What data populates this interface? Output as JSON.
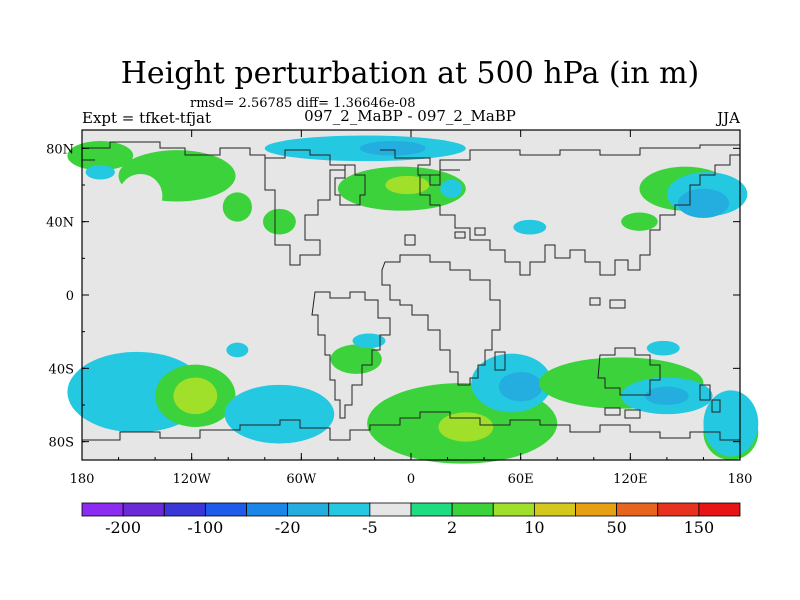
{
  "chart_data": {
    "type": "heatmap",
    "title": "Height perturbation at 500 hPa (in m)",
    "stats_text": "rmsd= 2.56785 diff= 1.36646e-08",
    "left_string": "Expt = tfket-tfjat",
    "center_string": "097_2_MaBP - 097_2_MaBP",
    "right_string": "JJA",
    "x_range": [
      -180,
      180
    ],
    "y_range": [
      -90,
      90
    ],
    "x_ticks": [
      {
        "value": -180,
        "label": "180"
      },
      {
        "value": -120,
        "label": "120W"
      },
      {
        "value": -60,
        "label": "60W"
      },
      {
        "value": 0,
        "label": "0"
      },
      {
        "value": 60,
        "label": "60E"
      },
      {
        "value": 120,
        "label": "120E"
      },
      {
        "value": 180,
        "label": "180"
      }
    ],
    "y_ticks": [
      {
        "value": 80,
        "label": "80N"
      },
      {
        "value": 40,
        "label": "40N"
      },
      {
        "value": 0,
        "label": "0"
      },
      {
        "value": -40,
        "label": "40S"
      },
      {
        "value": -80,
        "label": "80S"
      }
    ],
    "background_color": "#e6e6e6",
    "colorbar": {
      "colors": [
        "#8c2cf0",
        "#6a2ad8",
        "#3a36d8",
        "#1f5ae8",
        "#1a86e8",
        "#24aee0",
        "#24c8e0",
        "#e6e6e6",
        "#1edc82",
        "#3cd23c",
        "#a0e02a",
        "#d2c81e",
        "#e6a014",
        "#e6641e",
        "#e6321e",
        "#e61414"
      ],
      "labels": [
        {
          "value": "-200",
          "boundary": 1
        },
        {
          "value": "-100",
          "boundary": 3
        },
        {
          "value": "-20",
          "boundary": 5
        },
        {
          "value": "-5",
          "boundary": 7
        },
        {
          "value": "2",
          "boundary": 9
        },
        {
          "value": "10",
          "boundary": 11
        },
        {
          "value": "50",
          "boundary": 13
        },
        {
          "value": "150",
          "boundary": 15
        }
      ]
    },
    "regions": [
      {
        "level": 9,
        "lon": -170,
        "lat": 76,
        "rx": 18,
        "ry": 8
      },
      {
        "level": 9,
        "lon": -128,
        "lat": 65,
        "rx": 32,
        "ry": 14
      },
      {
        "level": 9,
        "lon": -95,
        "lat": 48,
        "rx": 8,
        "ry": 8
      },
      {
        "level": 9,
        "lon": -72,
        "lat": 40,
        "rx": 9,
        "ry": 7
      },
      {
        "level": 9,
        "lon": -5,
        "lat": 58,
        "rx": 35,
        "ry": 12
      },
      {
        "level": 10,
        "lon": -2,
        "lat": 60,
        "rx": 12,
        "ry": 5
      },
      {
        "level": 9,
        "lon": 150,
        "lat": 58,
        "rx": 25,
        "ry": 12
      },
      {
        "level": 9,
        "lon": 125,
        "lat": 40,
        "rx": 10,
        "ry": 5
      },
      {
        "level": 7,
        "lon": -148,
        "lat": 54,
        "rx": 12,
        "ry": 12
      },
      {
        "level": 6,
        "lon": -170,
        "lat": 67,
        "rx": 8,
        "ry": 4
      },
      {
        "level": 6,
        "lon": -25,
        "lat": 80,
        "rx": 55,
        "ry": 7
      },
      {
        "level": 5,
        "lon": -10,
        "lat": 80,
        "rx": 18,
        "ry": 4
      },
      {
        "level": 6,
        "lon": 22,
        "lat": 58,
        "rx": 6,
        "ry": 5
      },
      {
        "level": 6,
        "lon": 65,
        "lat": 37,
        "rx": 9,
        "ry": 4
      },
      {
        "level": 6,
        "lon": 162,
        "lat": 55,
        "rx": 22,
        "ry": 12
      },
      {
        "level": 5,
        "lon": 160,
        "lat": 50,
        "rx": 14,
        "ry": 8
      },
      {
        "level": 6,
        "lon": -150,
        "lat": -53,
        "rx": 38,
        "ry": 22
      },
      {
        "level": 9,
        "lon": -118,
        "lat": -55,
        "rx": 22,
        "ry": 17
      },
      {
        "level": 10,
        "lon": -118,
        "lat": -55,
        "rx": 12,
        "ry": 10
      },
      {
        "level": 6,
        "lon": -95,
        "lat": -30,
        "rx": 6,
        "ry": 4
      },
      {
        "level": 6,
        "lon": -72,
        "lat": -65,
        "rx": 30,
        "ry": 16
      },
      {
        "level": 9,
        "lon": -30,
        "lat": -35,
        "rx": 14,
        "ry": 8
      },
      {
        "level": 6,
        "lon": -23,
        "lat": -25,
        "rx": 9,
        "ry": 4
      },
      {
        "level": 9,
        "lon": 28,
        "lat": -70,
        "rx": 52,
        "ry": 22
      },
      {
        "level": 10,
        "lon": 30,
        "lat": -72,
        "rx": 15,
        "ry": 8
      },
      {
        "level": 6,
        "lon": 55,
        "lat": -48,
        "rx": 22,
        "ry": 16
      },
      {
        "level": 5,
        "lon": 60,
        "lat": -50,
        "rx": 12,
        "ry": 8
      },
      {
        "level": 9,
        "lon": 115,
        "lat": -48,
        "rx": 45,
        "ry": 14
      },
      {
        "level": 6,
        "lon": 140,
        "lat": -55,
        "rx": 25,
        "ry": 10
      },
      {
        "level": 5,
        "lon": 140,
        "lat": -55,
        "rx": 12,
        "ry": 5
      },
      {
        "level": 6,
        "lon": 138,
        "lat": -29,
        "rx": 9,
        "ry": 4
      },
      {
        "level": 9,
        "lon": 175,
        "lat": -75,
        "rx": 15,
        "ry": 15
      },
      {
        "level": 6,
        "lon": 175,
        "lat": -70,
        "rx": 15,
        "ry": 18
      }
    ]
  }
}
